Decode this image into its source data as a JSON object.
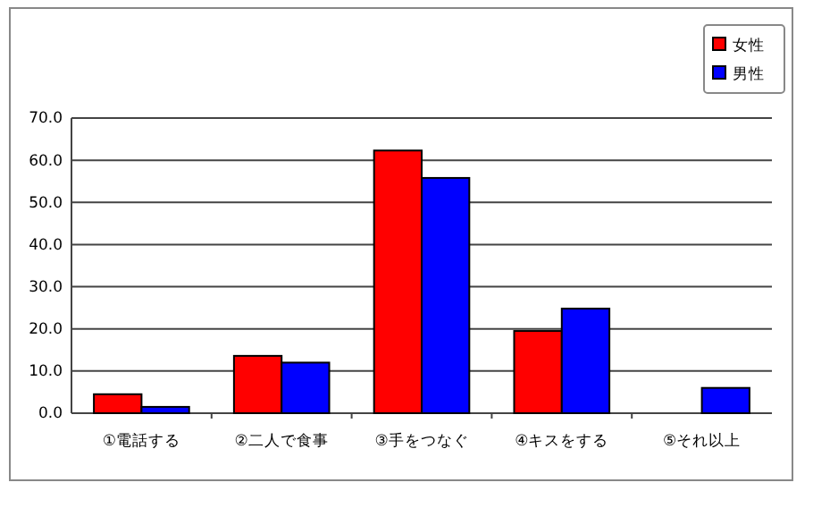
{
  "chart_data": {
    "type": "bar",
    "categories": [
      "①電話する",
      "②二人で食事",
      "③手をつなぐ",
      "④キスをする",
      "⑤それ以上"
    ],
    "series": [
      {
        "name": "女性",
        "color": "#ff0000",
        "values": [
          4.5,
          13.6,
          62.3,
          19.5,
          0
        ]
      },
      {
        "name": "男性",
        "color": "#0000ff",
        "values": [
          1.5,
          12.0,
          55.8,
          24.8,
          6.0
        ]
      }
    ],
    "ylim": [
      0,
      70
    ],
    "yticks": [
      {
        "value": 0,
        "label": "0.0"
      },
      {
        "value": 10,
        "label": "10.0"
      },
      {
        "value": 20,
        "label": "20.0"
      },
      {
        "value": 30,
        "label": "30.0"
      },
      {
        "value": 40,
        "label": "40.0"
      },
      {
        "value": 50,
        "label": "50.0"
      },
      {
        "value": 60,
        "label": "60.0"
      },
      {
        "value": 70,
        "label": "70.0"
      }
    ],
    "grid": "y",
    "legend": "top right"
  }
}
